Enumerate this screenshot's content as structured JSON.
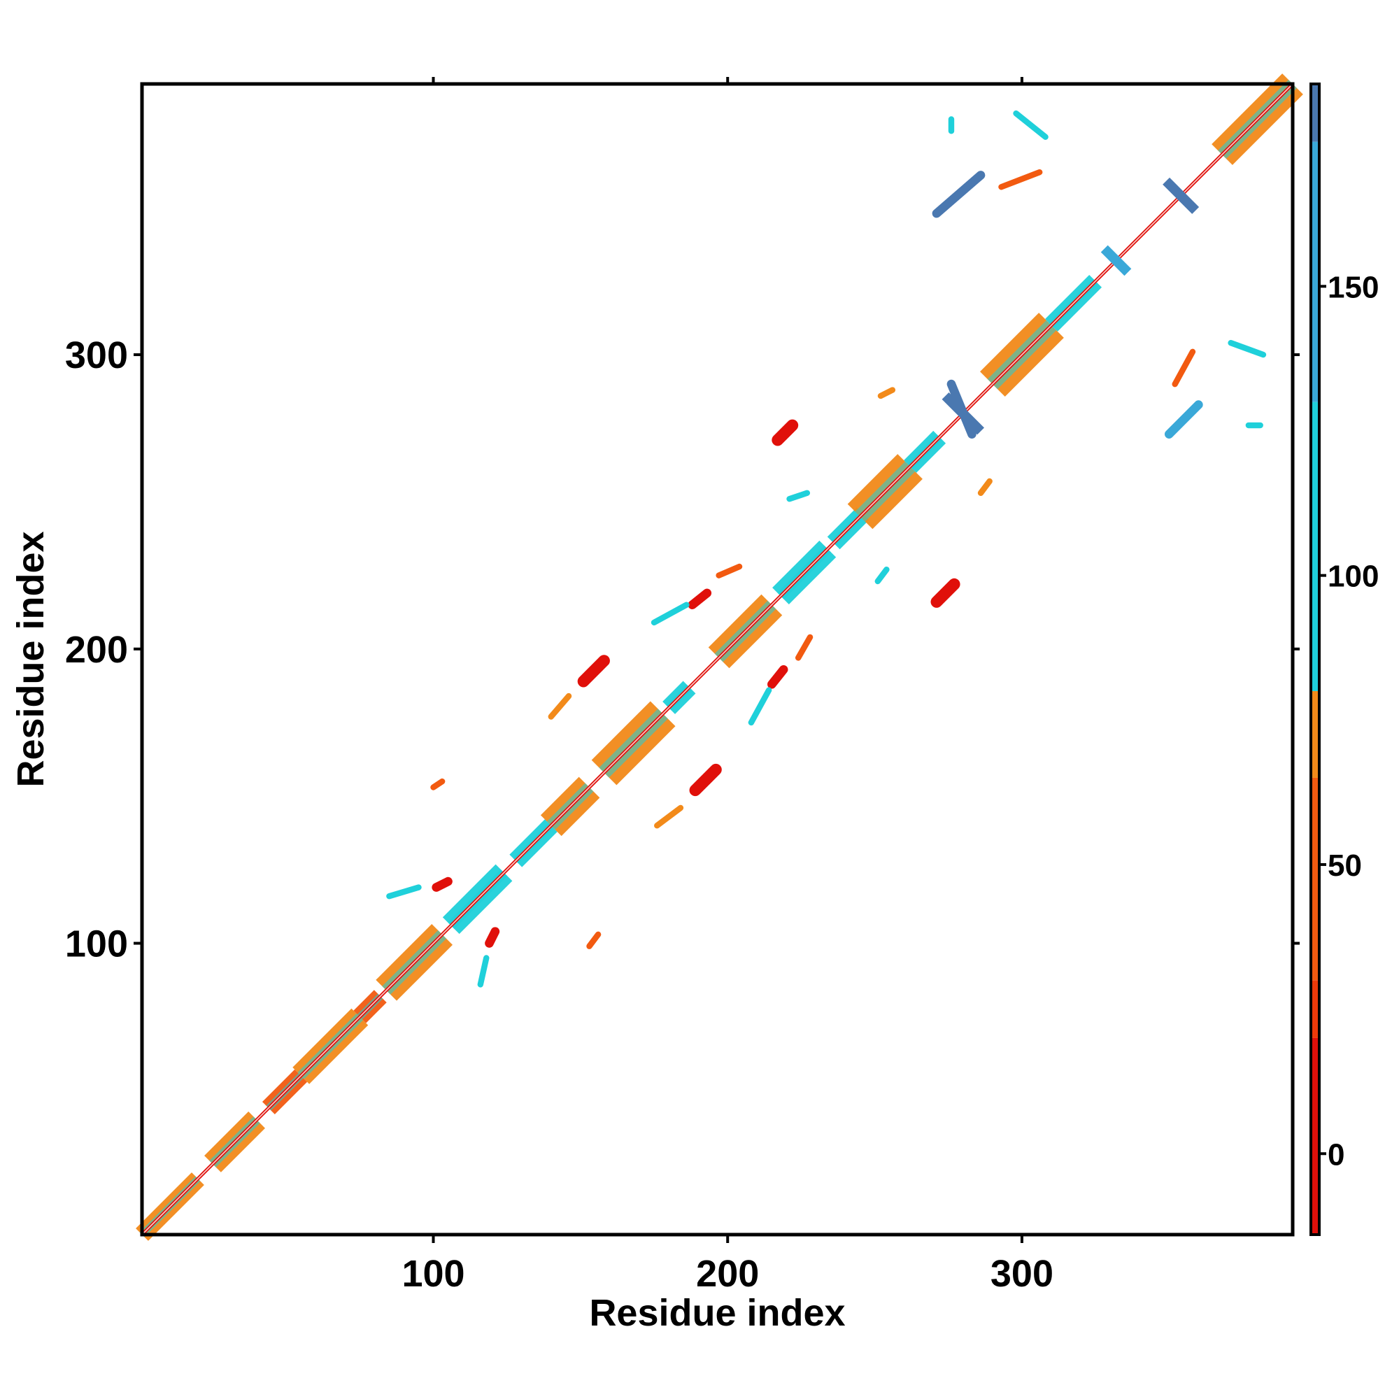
{
  "chart_data": {
    "type": "heatmap",
    "title": "",
    "xlabel": "Residue index",
    "ylabel": "Residue index",
    "xlim": [
      1,
      392
    ],
    "ylim": [
      1,
      392
    ],
    "x_ticks": [
      100,
      200,
      300
    ],
    "y_ticks": [
      100,
      200,
      300
    ],
    "grid": false,
    "colorbar": {
      "min": -14,
      "max": 185,
      "ticks": [
        0,
        50,
        100,
        150
      ],
      "bands": [
        {
          "from": -14,
          "to": 20,
          "color": "#e0100a"
        },
        {
          "from": 20,
          "to": 30,
          "color": "#ee3a0a"
        },
        {
          "from": 30,
          "to": 65,
          "color": "#f25a10"
        },
        {
          "from": 65,
          "to": 80,
          "color": "#f28a1a"
        },
        {
          "from": 80,
          "to": 130,
          "color": "#1fd0da"
        },
        {
          "from": 130,
          "to": 175,
          "color": "#3aa8d8"
        },
        {
          "from": 175,
          "to": 185,
          "color": "#4a78b0"
        }
      ]
    },
    "colors": {
      "red": "#e0100a",
      "orange_red": "#ee3a0a",
      "orange": "#f28a1a",
      "cyan": "#1fd0da",
      "light_blue": "#3aa8d8",
      "steel_blue": "#4a78b0",
      "white": "#ffffff"
    },
    "diagonal": {
      "core_color": "#e0100a",
      "segments": [
        {
          "start": 1,
          "end": 20,
          "width": 3,
          "color": "#f28a1a"
        },
        {
          "start": 25,
          "end": 40,
          "width": 4,
          "color": "#f28a1a"
        },
        {
          "start": 44,
          "end": 55,
          "width": 3,
          "color": "#f25a10"
        },
        {
          "start": 55,
          "end": 75,
          "width": 4,
          "color": "#f28a1a"
        },
        {
          "start": 75,
          "end": 82,
          "width": 3,
          "color": "#f25a10"
        },
        {
          "start": 84,
          "end": 103,
          "width": 5,
          "color": "#f28a1a"
        },
        {
          "start": 106,
          "end": 124,
          "width": 4,
          "color": "#1fd0da"
        },
        {
          "start": 128,
          "end": 140,
          "width": 3,
          "color": "#1fd0da"
        },
        {
          "start": 140,
          "end": 153,
          "width": 5,
          "color": "#f28a1a"
        },
        {
          "start": 158,
          "end": 178,
          "width": 6,
          "color": "#f28a1a"
        },
        {
          "start": 180,
          "end": 187,
          "width": 3,
          "color": "#1fd0da"
        },
        {
          "start": 197,
          "end": 215,
          "width": 5,
          "color": "#f28a1a"
        },
        {
          "start": 218,
          "end": 234,
          "width": 4,
          "color": "#1fd0da"
        },
        {
          "start": 236,
          "end": 246,
          "width": 3,
          "color": "#1fd0da"
        },
        {
          "start": 245,
          "end": 262,
          "width": 6,
          "color": "#f28a1a"
        },
        {
          "start": 262,
          "end": 272,
          "width": 3,
          "color": "#1fd0da"
        },
        {
          "start": 290,
          "end": 310,
          "width": 6,
          "color": "#f28a1a"
        },
        {
          "start": 310,
          "end": 325,
          "width": 3,
          "color": "#1fd0da"
        },
        {
          "start": 368,
          "end": 392,
          "width": 5,
          "color": "#f28a1a"
        }
      ],
      "crosses": [
        {
          "center": 280,
          "length": 12,
          "color": "#4a78b0"
        },
        {
          "center": 332,
          "length": 8,
          "color": "#3aa8d8"
        },
        {
          "center": 354,
          "length": 10,
          "color": "#4a78b0"
        }
      ]
    },
    "contacts": [
      {
        "x1": 189,
        "y1": 152,
        "x2": 196,
        "y2": 159,
        "color": "#e0100a",
        "width": 4
      },
      {
        "x1": 151,
        "y1": 189,
        "x2": 158,
        "y2": 196,
        "color": "#e0100a",
        "width": 4
      },
      {
        "x1": 217,
        "y1": 271,
        "x2": 222,
        "y2": 276,
        "color": "#e0100a",
        "width": 4
      },
      {
        "x1": 271,
        "y1": 216,
        "x2": 277,
        "y2": 222,
        "color": "#e0100a",
        "width": 4
      },
      {
        "x1": 188,
        "y1": 215,
        "x2": 193,
        "y2": 219,
        "color": "#e0100a",
        "width": 3
      },
      {
        "x1": 215,
        "y1": 188,
        "x2": 219,
        "y2": 193,
        "color": "#e0100a",
        "width": 3
      },
      {
        "x1": 119,
        "y1": 100,
        "x2": 121,
        "y2": 104,
        "color": "#e0100a",
        "width": 3
      },
      {
        "x1": 101,
        "y1": 119,
        "x2": 105,
        "y2": 121,
        "color": "#e0100a",
        "width": 3
      },
      {
        "x1": 283,
        "y1": 273,
        "x2": 276,
        "y2": 290,
        "color": "#4a78b0",
        "width": 3
      },
      {
        "x1": 271,
        "y1": 348,
        "x2": 286,
        "y2": 361,
        "color": "#4a78b0",
        "width": 3
      },
      {
        "x1": 350,
        "y1": 273,
        "x2": 360,
        "y2": 283,
        "color": "#3aa8d8",
        "width": 3
      },
      {
        "x1": 298,
        "y1": 382,
        "x2": 308,
        "y2": 374,
        "color": "#1fd0da",
        "width": 2
      },
      {
        "x1": 371,
        "y1": 304,
        "x2": 382,
        "y2": 300,
        "color": "#1fd0da",
        "width": 2
      },
      {
        "x1": 293,
        "y1": 357,
        "x2": 306,
        "y2": 362,
        "color": "#f25a10",
        "width": 2
      },
      {
        "x1": 352,
        "y1": 290,
        "x2": 358,
        "y2": 301,
        "color": "#f25a10",
        "width": 2
      },
      {
        "x1": 175,
        "y1": 209,
        "x2": 186,
        "y2": 215,
        "color": "#1fd0da",
        "width": 2
      },
      {
        "x1": 208,
        "y1": 175,
        "x2": 214,
        "y2": 186,
        "color": "#1fd0da",
        "width": 2
      },
      {
        "x1": 140,
        "y1": 177,
        "x2": 146,
        "y2": 184,
        "color": "#f28a1a",
        "width": 2
      },
      {
        "x1": 176,
        "y1": 140,
        "x2": 184,
        "y2": 146,
        "color": "#f28a1a",
        "width": 2
      },
      {
        "x1": 197,
        "y1": 225,
        "x2": 204,
        "y2": 228,
        "color": "#f25a10",
        "width": 2
      },
      {
        "x1": 224,
        "y1": 197,
        "x2": 228,
        "y2": 204,
        "color": "#f25a10",
        "width": 2
      },
      {
        "x1": 85,
        "y1": 116,
        "x2": 95,
        "y2": 119,
        "color": "#1fd0da",
        "width": 2
      },
      {
        "x1": 116,
        "y1": 86,
        "x2": 118,
        "y2": 95,
        "color": "#1fd0da",
        "width": 2
      },
      {
        "x1": 153,
        "y1": 99,
        "x2": 156,
        "y2": 103,
        "color": "#f25a10",
        "width": 2
      },
      {
        "x1": 100,
        "y1": 153,
        "x2": 103,
        "y2": 155,
        "color": "#f25a10",
        "width": 2
      },
      {
        "x1": 286,
        "y1": 253,
        "x2": 289,
        "y2": 257,
        "color": "#f28a1a",
        "width": 2
      },
      {
        "x1": 252,
        "y1": 286,
        "x2": 256,
        "y2": 288,
        "color": "#f28a1a",
        "width": 2
      },
      {
        "x1": 221,
        "y1": 251,
        "x2": 227,
        "y2": 253,
        "color": "#1fd0da",
        "width": 2
      },
      {
        "x1": 251,
        "y1": 223,
        "x2": 254,
        "y2": 227,
        "color": "#1fd0da",
        "width": 2
      },
      {
        "x1": 276,
        "y1": 376,
        "x2": 276,
        "y2": 380,
        "color": "#1fd0da",
        "width": 2
      },
      {
        "x1": 377,
        "y1": 276,
        "x2": 381,
        "y2": 276,
        "color": "#1fd0da",
        "width": 2
      }
    ]
  }
}
